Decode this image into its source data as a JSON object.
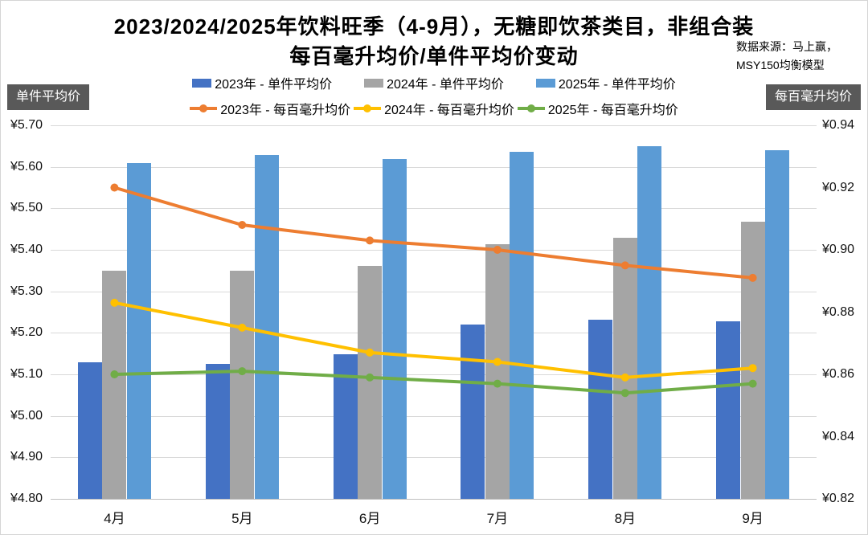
{
  "title": {
    "line1": "2023/2024/2025年饮料旺季（4-9月），无糖即饮茶类目，非组合装",
    "line2": "每百毫升均价/单件平均价变动"
  },
  "source_note": {
    "line1": "数据来源：马上赢，",
    "line2": "MSY150均衡模型"
  },
  "axis_boxes": {
    "left": "单件平均价",
    "right": "每百毫升均价"
  },
  "chart_data": {
    "type": "bar+line combo",
    "title": "2023/2024/2025年饮料旺季（4-9月），无糖即饮茶类目，非组合装 每百毫升均价/单件平均价变动",
    "categories": [
      "4月",
      "5月",
      "6月",
      "7月",
      "8月",
      "9月"
    ],
    "grid": true,
    "legend_position": "top",
    "series": [
      {
        "name": "2023年 - 单件平均价",
        "type": "bar",
        "axis": "left",
        "color": "#4472C4",
        "values": [
          5.13,
          5.126,
          5.148,
          5.22,
          5.231,
          5.228
        ]
      },
      {
        "name": "2024年 - 单件平均价",
        "type": "bar",
        "axis": "left",
        "color": "#A5A5A5",
        "values": [
          5.349,
          5.349,
          5.361,
          5.413,
          5.43,
          5.467
        ]
      },
      {
        "name": "2025年 - 单件平均价",
        "type": "bar",
        "axis": "left",
        "color": "#5B9BD5",
        "values": [
          5.609,
          5.628,
          5.618,
          5.637,
          5.649,
          5.641
        ]
      },
      {
        "name": "2023年 - 每百毫升均价",
        "type": "line",
        "axis": "right",
        "color": "#ED7D31",
        "values": [
          0.92,
          0.908,
          0.903,
          0.9,
          0.895,
          0.891
        ]
      },
      {
        "name": "2024年 - 每百毫升均价",
        "type": "line",
        "axis": "right",
        "color": "#FFC000",
        "values": [
          0.883,
          0.875,
          0.867,
          0.864,
          0.859,
          0.862
        ]
      },
      {
        "name": "2025年 - 每百毫升均价",
        "type": "line",
        "axis": "right",
        "color": "#70AD47",
        "values": [
          0.86,
          0.861,
          0.859,
          0.857,
          0.854,
          0.857
        ]
      }
    ],
    "axes": {
      "left": {
        "label": "单件平均价",
        "min": 4.8,
        "max": 5.7,
        "tick_values": [
          4.8,
          4.9,
          5.0,
          5.1,
          5.2,
          5.3,
          5.4,
          5.5,
          5.6,
          5.7
        ],
        "ticks": [
          "¥4.80",
          "¥4.90",
          "¥5.00",
          "¥5.10",
          "¥5.20",
          "¥5.30",
          "¥5.40",
          "¥5.50",
          "¥5.60",
          "¥5.70"
        ]
      },
      "right": {
        "label": "每百毫升均价",
        "min": 0.82,
        "max": 0.94,
        "tick_values": [
          0.82,
          0.84,
          0.86,
          0.88,
          0.9,
          0.92,
          0.94
        ],
        "ticks": [
          "¥0.82",
          "¥0.84",
          "¥0.86",
          "¥0.88",
          "¥0.90",
          "¥0.92",
          "¥0.94"
        ]
      }
    }
  }
}
